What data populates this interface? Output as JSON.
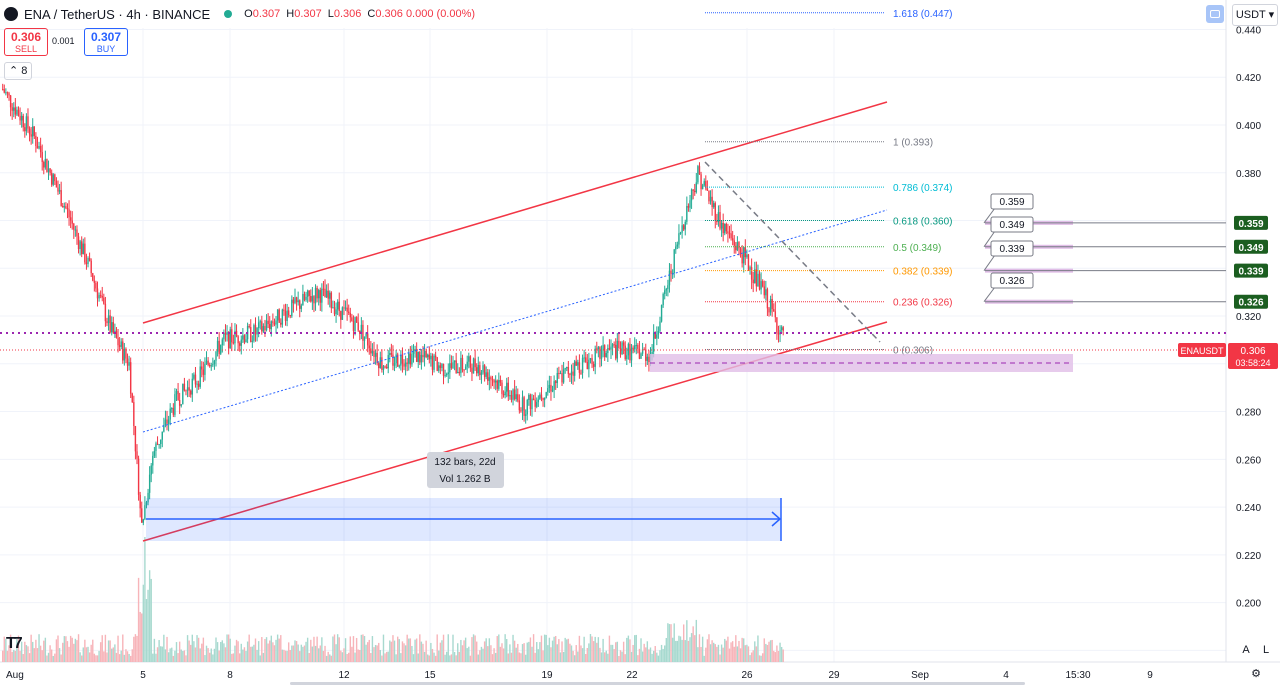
{
  "header": {
    "symbol": "ENA / TetherUS · 4h · BINANCE",
    "open_label": "O",
    "open": "0.307",
    "high_label": "H",
    "high": "0.307",
    "low_label": "L",
    "low": "0.306",
    "close_label": "C",
    "close": "0.306 0.000 (0.00%)"
  },
  "trade": {
    "sell_price": "0.306",
    "sell_label": "SELL",
    "spread": "0.001",
    "buy_price": "0.307",
    "buy_label": "BUY"
  },
  "indicators_collapse": "8",
  "currency": "USDT",
  "price_axis": [
    "0.440",
    "0.420",
    "0.400",
    "0.380",
    "0.320",
    "0.280",
    "0.260",
    "0.240",
    "0.220",
    "0.200"
  ],
  "time_axis": [
    "Aug",
    "5",
    "8",
    "12",
    "15",
    "19",
    "22",
    "26",
    "29",
    "Sep",
    "4",
    "15:30",
    "9"
  ],
  "fib_levels": [
    {
      "label": "1.618 (0.447)",
      "price": 0.447,
      "color": "#2962ff"
    },
    {
      "label": "1 (0.393)",
      "price": 0.393,
      "color": "#787b86"
    },
    {
      "label": "0.786 (0.374)",
      "price": 0.374,
      "color": "#00bcd4"
    },
    {
      "label": "0.618 (0.360)",
      "price": 0.36,
      "color": "#089981"
    },
    {
      "label": "0.5 (0.349)",
      "price": 0.349,
      "color": "#4caf50"
    },
    {
      "label": "0.382 (0.339)",
      "price": 0.339,
      "color": "#ff9800"
    },
    {
      "label": "0.236 (0.326)",
      "price": 0.326,
      "color": "#f23645"
    },
    {
      "label": "0 (0.306)",
      "price": 0.306,
      "color": "#787b86"
    }
  ],
  "price_callouts": [
    "0.359",
    "0.349",
    "0.339",
    "0.326"
  ],
  "axis_badges": [
    "0.359",
    "0.349",
    "0.339",
    "0.326"
  ],
  "current_price": {
    "symbol": "ENAUSDT",
    "price": "0.306",
    "countdown": "03:58:24"
  },
  "measure": {
    "bars": "132 bars, 22d",
    "volume": "Vol 1.262 B"
  },
  "axis_buttons": {
    "auto": "A",
    "log": "L"
  },
  "colors": {
    "up": "#22ab94",
    "down": "#f23645",
    "channel": "#f23645",
    "measure": "#2962ff",
    "zone": "#e1bee7"
  }
}
